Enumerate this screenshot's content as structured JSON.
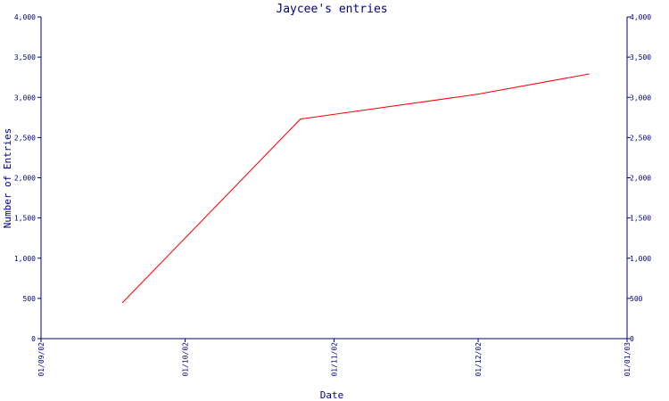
{
  "chart_data": {
    "type": "line",
    "title": "Jaycee's entries",
    "xlabel": "Date",
    "ylabel": "Number of Entries",
    "ylim": [
      0,
      4000
    ],
    "yticks": [
      0,
      500,
      1000,
      1500,
      2000,
      2500,
      3000,
      3500,
      4000
    ],
    "ytick_labels": [
      "0",
      "500",
      "1,000",
      "1,500",
      "2,000",
      "2,500",
      "3,000",
      "3,500",
      "4,000"
    ],
    "xlim": [
      "2002-09-01",
      "2003-01-01"
    ],
    "xticks": [
      "2002-09-01",
      "2002-10-01",
      "2002-11-01",
      "2002-12-01",
      "2003-01-01"
    ],
    "xtick_labels": [
      "01/09/02",
      "01/10/02",
      "01/11/02",
      "01/12/02",
      "01/01/03"
    ],
    "right_axis": true,
    "grid": false,
    "series": [
      {
        "color": "#ff0000",
        "x": [
          "2002-09-18",
          "2002-10-25",
          "2002-12-01",
          "2002-12-24"
        ],
        "y": [
          450,
          2730,
          3040,
          3290
        ]
      }
    ]
  },
  "colors": {
    "axis": "#000080",
    "text": "#000080",
    "line": "#ff0000",
    "background": "#ffffff"
  }
}
